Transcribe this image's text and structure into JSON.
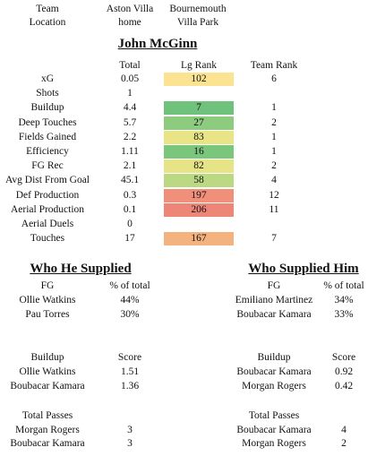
{
  "header": {
    "team_label": "Team",
    "location_label": "Location",
    "team1": "Aston Villa",
    "team2": "Bournemouth",
    "location1": "home",
    "location2": "Villa Park"
  },
  "player_name": "John McGinn",
  "stats": {
    "col_total": "Total",
    "col_lg_rank": "Lg Rank",
    "col_team_rank": "Team Rank",
    "rows": [
      {
        "label": "xG",
        "total": "0.05",
        "lg_rank": "102",
        "team_rank": "6",
        "color": "#fbe391"
      },
      {
        "label": "Shots",
        "total": "1",
        "lg_rank": "",
        "team_rank": "",
        "color": ""
      },
      {
        "label": "Buildup",
        "total": "4.4",
        "lg_rank": "7",
        "team_rank": "1",
        "color": "#6fc27c"
      },
      {
        "label": "Deep Touches",
        "total": "5.7",
        "lg_rank": "27",
        "team_rank": "2",
        "color": "#8dcb7f"
      },
      {
        "label": "Fields Gained",
        "total": "2.2",
        "lg_rank": "83",
        "team_rank": "1",
        "color": "#e9e586"
      },
      {
        "label": "Efficiency",
        "total": "1.11",
        "lg_rank": "16",
        "team_rank": "1",
        "color": "#7bc67d"
      },
      {
        "label": "FG Rec",
        "total": "2.1",
        "lg_rank": "82",
        "team_rank": "2",
        "color": "#e6e487"
      },
      {
        "label": "Avg Dist From Goal",
        "total": "45.1",
        "lg_rank": "58",
        "team_rank": "4",
        "color": "#bbd982"
      },
      {
        "label": "Def Production",
        "total": "0.3",
        "lg_rank": "197",
        "team_rank": "12",
        "color": "#f0907b"
      },
      {
        "label": "Aerial Production",
        "total": "0.1",
        "lg_rank": "206",
        "team_rank": "11",
        "color": "#ee8677"
      },
      {
        "label": "Aerial Duels",
        "total": "0",
        "lg_rank": "",
        "team_rank": "",
        "color": ""
      },
      {
        "label": "Touches",
        "total": "17",
        "lg_rank": "167",
        "team_rank": "7",
        "color": "#f4b27f"
      }
    ]
  },
  "supplied": {
    "title": "Who He Supplied",
    "fg_header": "FG",
    "fg_pct_header": "% of total",
    "fg_rows": [
      {
        "name": "Ollie Watkins",
        "value": "44%"
      },
      {
        "name": "Pau Torres",
        "value": "30%"
      }
    ],
    "buildup_header": "Buildup",
    "buildup_score_header": "Score",
    "buildup_rows": [
      {
        "name": "Ollie Watkins",
        "value": "1.51"
      },
      {
        "name": "Boubacar Kamara",
        "value": "1.36"
      }
    ],
    "passes_header": "Total Passes",
    "passes_rows": [
      {
        "name": "Morgan Rogers",
        "value": "3"
      },
      {
        "name": "Boubacar Kamara",
        "value": "3"
      }
    ]
  },
  "supplied_him": {
    "title": "Who Supplied Him",
    "fg_header": "FG",
    "fg_pct_header": "% of total",
    "fg_rows": [
      {
        "name": "Emiliano Martinez",
        "value": "34%"
      },
      {
        "name": "Boubacar Kamara",
        "value": "33%"
      }
    ],
    "buildup_header": "Buildup",
    "buildup_score_header": "Score",
    "buildup_rows": [
      {
        "name": "Boubacar Kamara",
        "value": "0.92"
      },
      {
        "name": "Morgan Rogers",
        "value": "0.42"
      }
    ],
    "passes_header": "Total Passes",
    "passes_rows": [
      {
        "name": "Boubacar Kamara",
        "value": "4"
      },
      {
        "name": "Morgan Rogers",
        "value": "2"
      }
    ]
  }
}
